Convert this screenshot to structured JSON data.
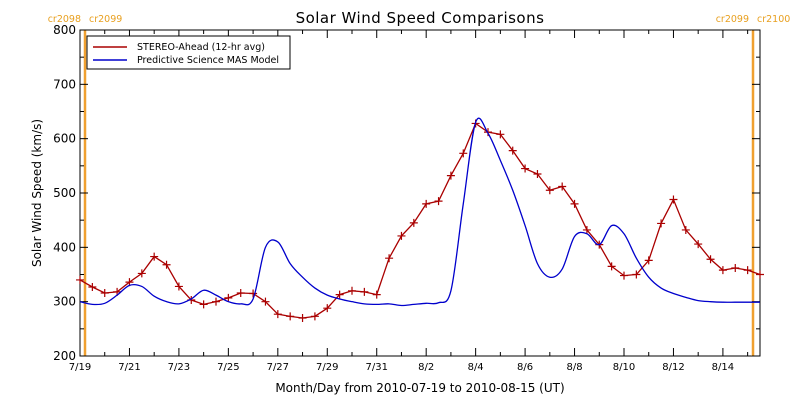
{
  "chart_data": {
    "type": "line",
    "title": "Solar Wind Speed Comparisons",
    "xlabel": "Month/Day from 2010-07-19 to 2010-08-15 (UT)",
    "ylabel": "Solar Wind Speed (km/s)",
    "xlim": [
      "2010-07-19T00:00",
      "2010-08-15T12:00"
    ],
    "ylim": [
      200,
      800
    ],
    "y_ticks": [
      200,
      300,
      400,
      500,
      600,
      700,
      800
    ],
    "x_ticks": [
      {
        "date": "2010-07-19",
        "label": "7/19"
      },
      {
        "date": "2010-07-21",
        "label": "7/21"
      },
      {
        "date": "2010-07-23",
        "label": "7/23"
      },
      {
        "date": "2010-07-25",
        "label": "7/25"
      },
      {
        "date": "2010-07-27",
        "label": "7/27"
      },
      {
        "date": "2010-07-29",
        "label": "7/29"
      },
      {
        "date": "2010-07-31",
        "label": "7/31"
      },
      {
        "date": "2010-08-02",
        "label": "8/2"
      },
      {
        "date": "2010-08-04",
        "label": "8/4"
      },
      {
        "date": "2010-08-06",
        "label": "8/6"
      },
      {
        "date": "2010-08-08",
        "label": "8/8"
      },
      {
        "date": "2010-08-10",
        "label": "8/10"
      },
      {
        "date": "2010-08-12",
        "label": "8/12"
      },
      {
        "date": "2010-08-14",
        "label": "8/14"
      }
    ],
    "legend_position": "top-left",
    "carrington_markers": [
      {
        "date": "2010-07-19T00:00",
        "left_label": "cr2098",
        "right_label": "cr2099"
      },
      {
        "date": "2010-08-15T08:00",
        "left_label": "cr2099",
        "right_label": "cr2100"
      }
    ],
    "series": [
      {
        "name": "STEREO-Ahead (12-hr avg)",
        "color": "#aa0000",
        "marker": "plus",
        "x": [
          "2010-07-19T00:00",
          "2010-07-19T12:00",
          "2010-07-20T00:00",
          "2010-07-20T12:00",
          "2010-07-21T00:00",
          "2010-07-21T12:00",
          "2010-07-22T00:00",
          "2010-07-22T12:00",
          "2010-07-23T00:00",
          "2010-07-23T12:00",
          "2010-07-24T00:00",
          "2010-07-24T12:00",
          "2010-07-25T00:00",
          "2010-07-25T12:00",
          "2010-07-26T00:00",
          "2010-07-26T12:00",
          "2010-07-27T00:00",
          "2010-07-27T12:00",
          "2010-07-28T00:00",
          "2010-07-28T12:00",
          "2010-07-29T00:00",
          "2010-07-29T12:00",
          "2010-07-30T00:00",
          "2010-07-30T12:00",
          "2010-07-31T00:00",
          "2010-07-31T12:00",
          "2010-08-01T00:00",
          "2010-08-01T12:00",
          "2010-08-02T00:00",
          "2010-08-02T12:00",
          "2010-08-03T00:00",
          "2010-08-03T12:00",
          "2010-08-04T00:00",
          "2010-08-04T12:00",
          "2010-08-05T00:00",
          "2010-08-05T12:00",
          "2010-08-06T00:00",
          "2010-08-06T12:00",
          "2010-08-07T00:00",
          "2010-08-07T12:00",
          "2010-08-08T00:00",
          "2010-08-08T12:00",
          "2010-08-09T00:00",
          "2010-08-09T12:00",
          "2010-08-10T00:00",
          "2010-08-10T12:00",
          "2010-08-11T00:00",
          "2010-08-11T12:00",
          "2010-08-12T00:00",
          "2010-08-12T12:00",
          "2010-08-13T00:00",
          "2010-08-13T12:00",
          "2010-08-14T00:00",
          "2010-08-14T12:00",
          "2010-08-15T00:00",
          "2010-08-15T12:00"
        ],
        "y": [
          340,
          327,
          316,
          318,
          336,
          352,
          383,
          368,
          328,
          303,
          295,
          300,
          307,
          316,
          315,
          300,
          277,
          273,
          270,
          273,
          288,
          313,
          320,
          318,
          313,
          380,
          421,
          445,
          480,
          485,
          532,
          573,
          628,
          612,
          608,
          578,
          545,
          535,
          505,
          512,
          480,
          432,
          405,
          365,
          348,
          350,
          376,
          444,
          488,
          432,
          406,
          378,
          358,
          362,
          358,
          350
        ]
      },
      {
        "name": "Predictive Science MAS Model",
        "color": "#0000cc",
        "marker": "none",
        "x": [
          "2010-07-19T00:00",
          "2010-07-19T12:00",
          "2010-07-20T00:00",
          "2010-07-20T12:00",
          "2010-07-21T00:00",
          "2010-07-21T12:00",
          "2010-07-22T00:00",
          "2010-07-22T12:00",
          "2010-07-23T00:00",
          "2010-07-23T12:00",
          "2010-07-24T00:00",
          "2010-07-24T12:00",
          "2010-07-25T00:00",
          "2010-07-25T12:00",
          "2010-07-26T00:00",
          "2010-07-26T12:00",
          "2010-07-27T00:00",
          "2010-07-27T12:00",
          "2010-07-28T00:00",
          "2010-07-28T12:00",
          "2010-07-29T00:00",
          "2010-07-29T12:00",
          "2010-07-30T00:00",
          "2010-07-30T12:00",
          "2010-07-31T00:00",
          "2010-07-31T12:00",
          "2010-08-01T00:00",
          "2010-08-01T12:00",
          "2010-08-02T00:00",
          "2010-08-02T12:00",
          "2010-08-03T00:00",
          "2010-08-03T12:00",
          "2010-08-04T00:00",
          "2010-08-04T12:00",
          "2010-08-05T00:00",
          "2010-08-05T12:00",
          "2010-08-06T00:00",
          "2010-08-06T12:00",
          "2010-08-07T00:00",
          "2010-08-07T12:00",
          "2010-08-08T00:00",
          "2010-08-08T12:00",
          "2010-08-09T00:00",
          "2010-08-09T12:00",
          "2010-08-10T00:00",
          "2010-08-10T12:00",
          "2010-08-11T00:00",
          "2010-08-11T12:00",
          "2010-08-12T00:00",
          "2010-08-12T12:00",
          "2010-08-13T00:00",
          "2010-08-13T12:00",
          "2010-08-14T00:00",
          "2010-08-14T12:00",
          "2010-08-15T00:00",
          "2010-08-15T12:00"
        ],
        "y": [
          300,
          295,
          297,
          312,
          330,
          328,
          310,
          300,
          296,
          305,
          321,
          312,
          300,
          296,
          305,
          400,
          410,
          370,
          345,
          325,
          312,
          305,
          300,
          296,
          295,
          296,
          293,
          295,
          297,
          298,
          320,
          480,
          630,
          610,
          560,
          505,
          440,
          370,
          345,
          360,
          420,
          425,
          405,
          440,
          425,
          380,
          345,
          325,
          315,
          308,
          302,
          300,
          299,
          299,
          299,
          299
        ]
      }
    ]
  }
}
